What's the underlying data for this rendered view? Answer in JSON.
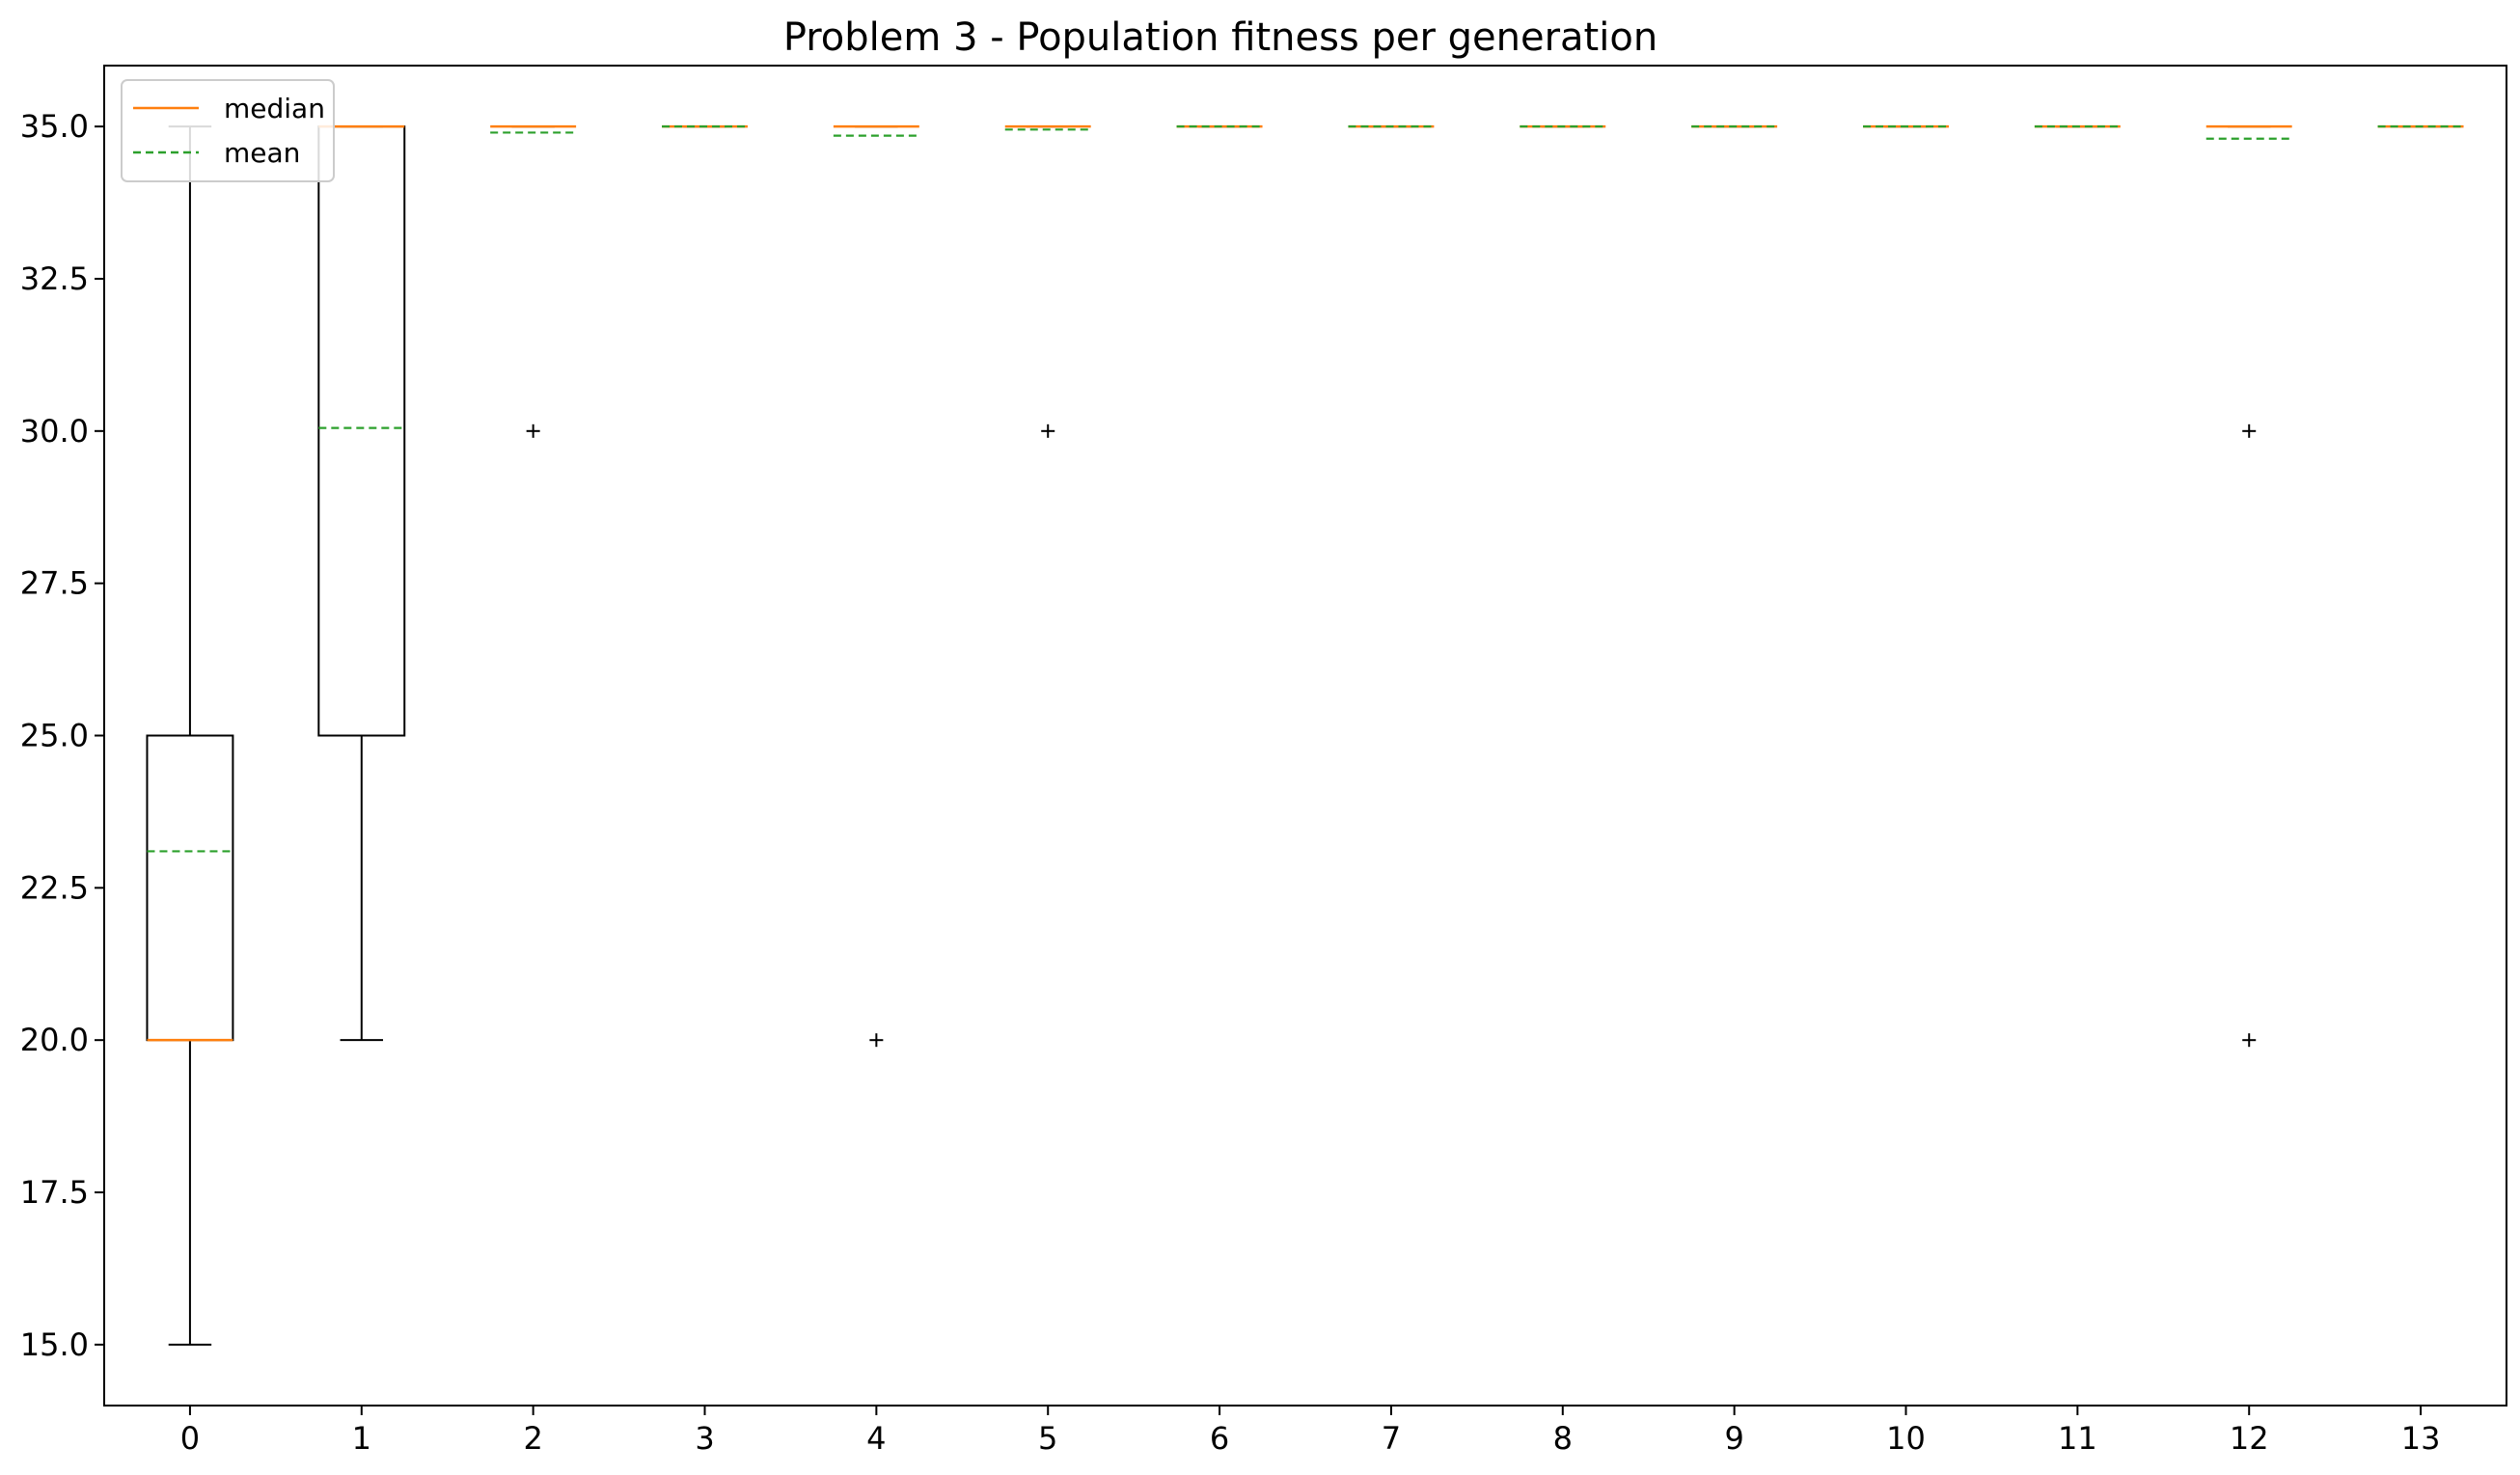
{
  "chart_data": {
    "type": "box",
    "title": "Problem 3 - Population fitness per generation",
    "xlabel": "",
    "ylabel": "",
    "ylim": [
      14,
      36
    ],
    "xlim": [
      -0.5,
      13.5
    ],
    "y_ticks": [
      15.0,
      17.5,
      20.0,
      22.5,
      25.0,
      27.5,
      30.0,
      32.5,
      35.0
    ],
    "y_tick_labels": [
      "15.0",
      "17.5",
      "20.0",
      "22.5",
      "25.0",
      "27.5",
      "30.0",
      "32.5",
      "35.0"
    ],
    "grid": false,
    "legend": {
      "position": "top-left",
      "entries": [
        {
          "label": "median",
          "color": "#ff7f0e",
          "style": "solid"
        },
        {
          "label": "mean",
          "color": "#2ca02c",
          "style": "dashed"
        }
      ]
    },
    "box_color": "#000000",
    "median_color": "#ff7f0e",
    "mean_color": "#2ca02c",
    "series": [
      {
        "x": 0,
        "label": "0",
        "whisker_low": 15,
        "q1": 20,
        "median": 20,
        "q3": 25,
        "whisker_high": 35,
        "mean": 23.1,
        "outliers": []
      },
      {
        "x": 1,
        "label": "1",
        "whisker_low": 20,
        "q1": 25,
        "median": 35,
        "q3": 35,
        "whisker_high": 35,
        "mean": 30.05,
        "outliers": []
      },
      {
        "x": 2,
        "label": "2",
        "whisker_low": 35,
        "q1": 35,
        "median": 35,
        "q3": 35,
        "whisker_high": 35,
        "mean": 34.9,
        "outliers": [
          30
        ]
      },
      {
        "x": 3,
        "label": "3",
        "whisker_low": 35,
        "q1": 35,
        "median": 35,
        "q3": 35,
        "whisker_high": 35,
        "mean": 35,
        "outliers": []
      },
      {
        "x": 4,
        "label": "4",
        "whisker_low": 35,
        "q1": 35,
        "median": 35,
        "q3": 35,
        "whisker_high": 35,
        "mean": 34.85,
        "outliers": [
          20
        ]
      },
      {
        "x": 5,
        "label": "5",
        "whisker_low": 35,
        "q1": 35,
        "median": 35,
        "q3": 35,
        "whisker_high": 35,
        "mean": 34.95,
        "outliers": [
          30
        ]
      },
      {
        "x": 6,
        "label": "6",
        "whisker_low": 35,
        "q1": 35,
        "median": 35,
        "q3": 35,
        "whisker_high": 35,
        "mean": 35,
        "outliers": []
      },
      {
        "x": 7,
        "label": "7",
        "whisker_low": 35,
        "q1": 35,
        "median": 35,
        "q3": 35,
        "whisker_high": 35,
        "mean": 35,
        "outliers": []
      },
      {
        "x": 8,
        "label": "8",
        "whisker_low": 35,
        "q1": 35,
        "median": 35,
        "q3": 35,
        "whisker_high": 35,
        "mean": 35,
        "outliers": []
      },
      {
        "x": 9,
        "label": "9",
        "whisker_low": 35,
        "q1": 35,
        "median": 35,
        "q3": 35,
        "whisker_high": 35,
        "mean": 35,
        "outliers": []
      },
      {
        "x": 10,
        "label": "10",
        "whisker_low": 35,
        "q1": 35,
        "median": 35,
        "q3": 35,
        "whisker_high": 35,
        "mean": 35,
        "outliers": []
      },
      {
        "x": 11,
        "label": "11",
        "whisker_low": 35,
        "q1": 35,
        "median": 35,
        "q3": 35,
        "whisker_high": 35,
        "mean": 35,
        "outliers": []
      },
      {
        "x": 12,
        "label": "12",
        "whisker_low": 35,
        "q1": 35,
        "median": 35,
        "q3": 35,
        "whisker_high": 35,
        "mean": 34.8,
        "outliers": [
          30,
          20
        ]
      },
      {
        "x": 13,
        "label": "13",
        "whisker_low": 35,
        "q1": 35,
        "median": 35,
        "q3": 35,
        "whisker_high": 35,
        "mean": 35,
        "outliers": []
      }
    ]
  }
}
